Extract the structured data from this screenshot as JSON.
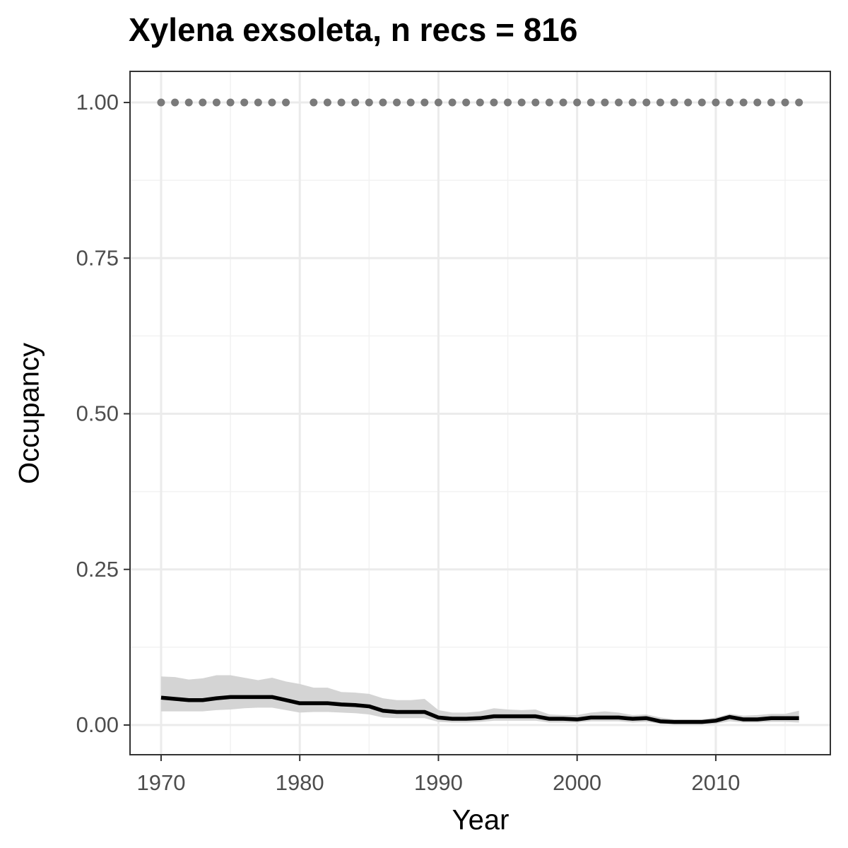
{
  "chart_data": {
    "type": "line",
    "title": "Xylena exsoleta, n recs = 816",
    "xlabel": "Year",
    "ylabel": "Occupancy",
    "x": [
      1970,
      1971,
      1972,
      1973,
      1974,
      1975,
      1976,
      1977,
      1978,
      1979,
      1980,
      1981,
      1982,
      1983,
      1984,
      1985,
      1986,
      1987,
      1988,
      1989,
      1990,
      1991,
      1992,
      1993,
      1994,
      1995,
      1996,
      1997,
      1998,
      1999,
      2000,
      2001,
      2002,
      2003,
      2004,
      2005,
      2006,
      2007,
      2008,
      2009,
      2010,
      2011,
      2012,
      2013,
      2014,
      2015,
      2016
    ],
    "series": [
      {
        "style": "points",
        "color": "#7a7a7a",
        "values": [
          1,
          1,
          1,
          1,
          1,
          1,
          1,
          1,
          1,
          1,
          null,
          1,
          1,
          1,
          1,
          1,
          1,
          1,
          1,
          1,
          1,
          1,
          1,
          1,
          1,
          1,
          1,
          1,
          1,
          1,
          1,
          1,
          1,
          1,
          1,
          1,
          1,
          1,
          1,
          1,
          1,
          1,
          1,
          1,
          1,
          1,
          1
        ]
      },
      {
        "style": "line",
        "color": "#000000",
        "band_color": "#d4d4d4",
        "values": [
          0.044,
          0.042,
          0.04,
          0.04,
          0.043,
          0.045,
          0.045,
          0.045,
          0.045,
          0.04,
          0.035,
          0.035,
          0.035,
          0.033,
          0.032,
          0.03,
          0.023,
          0.021,
          0.021,
          0.021,
          0.012,
          0.01,
          0.01,
          0.011,
          0.014,
          0.014,
          0.014,
          0.014,
          0.01,
          0.01,
          0.009,
          0.012,
          0.012,
          0.012,
          0.01,
          0.011,
          0.006,
          0.005,
          0.005,
          0.005,
          0.007,
          0.013,
          0.009,
          0.009,
          0.011,
          0.011,
          0.011
        ],
        "upper": [
          0.078,
          0.077,
          0.073,
          0.075,
          0.08,
          0.08,
          0.076,
          0.072,
          0.076,
          0.07,
          0.066,
          0.06,
          0.06,
          0.053,
          0.052,
          0.05,
          0.043,
          0.04,
          0.04,
          0.042,
          0.024,
          0.02,
          0.02,
          0.022,
          0.027,
          0.025,
          0.024,
          0.025,
          0.017,
          0.016,
          0.016,
          0.02,
          0.022,
          0.02,
          0.016,
          0.017,
          0.012,
          0.009,
          0.009,
          0.009,
          0.012,
          0.018,
          0.015,
          0.016,
          0.018,
          0.018,
          0.023
        ],
        "lower": [
          0.022,
          0.022,
          0.022,
          0.022,
          0.024,
          0.025,
          0.027,
          0.028,
          0.028,
          0.024,
          0.02,
          0.021,
          0.021,
          0.02,
          0.019,
          0.017,
          0.012,
          0.011,
          0.011,
          0.011,
          0.005,
          0.004,
          0.004,
          0.005,
          0.007,
          0.007,
          0.007,
          0.007,
          0.004,
          0.004,
          0.004,
          0.006,
          0.006,
          0.006,
          0.004,
          0.005,
          0.002,
          0.001,
          0.001,
          0.001,
          0.002,
          0.006,
          0.004,
          0.004,
          0.005,
          0.005,
          0.004
        ]
      }
    ],
    "xlim": [
      1967.76,
      2018.26
    ],
    "ylim": [
      -0.0477,
      1.05
    ],
    "xticks": [
      1970,
      1980,
      1990,
      2000,
      2010
    ],
    "yticks": [
      {
        "value": 0,
        "label": "0.00"
      },
      {
        "value": 0.25,
        "label": "0.25"
      },
      {
        "value": 0.5,
        "label": "0.50"
      },
      {
        "value": 0.75,
        "label": "0.75"
      },
      {
        "value": 1,
        "label": "1.00"
      }
    ],
    "xminor": [
      1975,
      1985,
      1995,
      2005,
      2015
    ],
    "yminor": [
      0.125,
      0.375,
      0.625,
      0.875
    ],
    "grid": true
  }
}
